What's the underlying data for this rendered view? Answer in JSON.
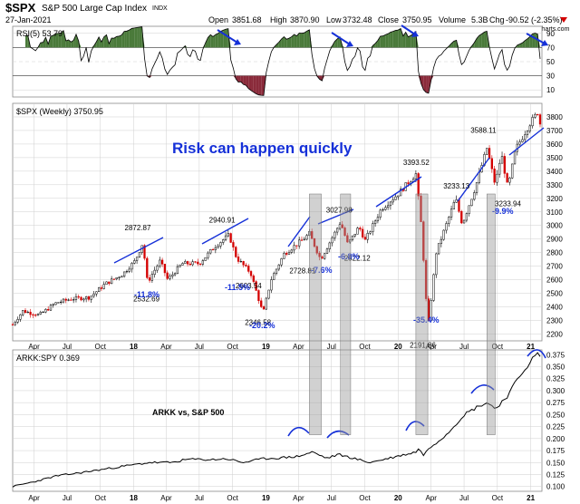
{
  "header": {
    "symbol": "$SPX",
    "name": "S&P 500 Large Cap Index",
    "exchange": "INDX",
    "date": "27-Jan-2021",
    "open_label": "Open",
    "open": "3851.68",
    "high_label": "High",
    "high": "3870.90",
    "low_label": "Low",
    "low": "3732.48",
    "close_label": "Close",
    "close": "3750.95",
    "volume_label": "Volume",
    "volume": "5.3B",
    "chg_label": "Chg",
    "chg": "-90.52 (-2.35%)",
    "credit": "© StockCharts.com"
  },
  "chart_data": [
    {
      "type": "line",
      "panel": "rsi",
      "title": "RSI(5) 53.79",
      "ylim": [
        0,
        100
      ],
      "y_ticks": [
        10,
        30,
        50,
        70,
        90
      ],
      "overbought": 70,
      "oversold": 30,
      "last_value": 53.79,
      "fill_colors": {
        "above": "#4a7a3a",
        "below": "#8a2a3a"
      }
    },
    {
      "type": "candlestick",
      "panel": "price",
      "title": "$SPX (Weekly) 3750.95",
      "annotation": "Risk can happen quickly",
      "ylim": [
        2150,
        3900
      ],
      "y_ticks": [
        2200,
        2300,
        2400,
        2500,
        2600,
        2700,
        2800,
        2900,
        3000,
        3100,
        3200,
        3300,
        3400,
        3500,
        3600,
        3700,
        3800
      ],
      "x_ticks": [
        "Apr",
        "Jul",
        "Oct",
        "18",
        "Apr",
        "Jul",
        "Oct",
        "19",
        "Apr",
        "Jul",
        "Oct",
        "20",
        "Apr",
        "Jul",
        "Oct",
        "21"
      ],
      "x_range": [
        "2017-02-01",
        "2021-02-01"
      ],
      "close_path": [
        [
          "2017-02-01",
          2270
        ],
        [
          "2017-03-01",
          2370
        ],
        [
          "2017-04-15",
          2340
        ],
        [
          "2017-06-01",
          2430
        ],
        [
          "2017-07-15",
          2460
        ],
        [
          "2017-09-01",
          2470
        ],
        [
          "2017-10-15",
          2570
        ],
        [
          "2017-12-01",
          2640
        ],
        [
          "2018-01-05",
          2740
        ],
        [
          "2018-01-26",
          2872
        ],
        [
          "2018-02-08",
          2580
        ],
        [
          "2018-03-15",
          2740
        ],
        [
          "2018-04-05",
          2600
        ],
        [
          "2018-05-15",
          2720
        ],
        [
          "2018-07-01",
          2720
        ],
        [
          "2018-08-15",
          2850
        ],
        [
          "2018-09-21",
          2930
        ],
        [
          "2018-10-12",
          2760
        ],
        [
          "2018-11-20",
          2650
        ],
        [
          "2018-12-24",
          2350
        ],
        [
          "2019-01-15",
          2600
        ],
        [
          "2019-02-20",
          2790
        ],
        [
          "2019-04-15",
          2900
        ],
        [
          "2019-05-01",
          2940
        ],
        [
          "2019-06-01",
          2750
        ],
        [
          "2019-07-26",
          3025
        ],
        [
          "2019-08-15",
          2860
        ],
        [
          "2019-09-15",
          2990
        ],
        [
          "2019-10-02",
          2890
        ],
        [
          "2019-11-15",
          3120
        ],
        [
          "2019-12-31",
          3230
        ],
        [
          "2020-02-19",
          3380
        ],
        [
          "2020-03-06",
          2970
        ],
        [
          "2020-03-23",
          2237
        ],
        [
          "2020-04-15",
          2800
        ],
        [
          "2020-06-08",
          3200
        ],
        [
          "2020-06-26",
          3010
        ],
        [
          "2020-08-01",
          3280
        ],
        [
          "2020-09-02",
          3570
        ],
        [
          "2020-09-25",
          3300
        ],
        [
          "2020-10-12",
          3530
        ],
        [
          "2020-10-30",
          3270
        ],
        [
          "2020-11-20",
          3560
        ],
        [
          "2020-12-31",
          3756
        ],
        [
          "2021-01-22",
          3841
        ],
        [
          "2021-01-27",
          3751
        ]
      ],
      "price_labels": [
        {
          "date": "2018-01-26",
          "value": 2872.87,
          "label": "2872.87"
        },
        {
          "date": "2018-02-09",
          "value": 2532.69,
          "label": "2532.69"
        },
        {
          "date": "2018-09-21",
          "value": 2940.91,
          "label": "2940.91"
        },
        {
          "date": "2018-10-29",
          "value": 2603.54,
          "label": "2603.54"
        },
        {
          "date": "2018-12-24",
          "value": 2346.58,
          "label": "2346.58"
        },
        {
          "date": "2019-05-31",
          "value": 2728.81,
          "label": "2728.81"
        },
        {
          "date": "2019-07-26",
          "value": 3027.98,
          "label": "3027.98"
        },
        {
          "date": "2019-08-05",
          "value": 2822.12,
          "label": "2822.12"
        },
        {
          "date": "2020-02-19",
          "value": 3393.52,
          "label": "3393.52"
        },
        {
          "date": "2020-03-23",
          "value": 2191.86,
          "label": "2191.86"
        },
        {
          "date": "2020-09-02",
          "value": 3588.11,
          "label": "3588.11"
        },
        {
          "date": "2020-09-02",
          "value": 3233.13,
          "label": "3233.13"
        },
        {
          "date": "2020-09-24",
          "value": 3233.94,
          "label": "3233.94"
        }
      ],
      "drawdowns": [
        "-11.8%",
        "-11.5%",
        "-20.2%",
        "-7.6%",
        "-6.8%",
        "-35.4%",
        "-9.9%"
      ],
      "shaded_periods": [
        [
          "2019-05-01",
          "2019-06-03"
        ],
        [
          "2019-07-26",
          "2019-08-23"
        ],
        [
          "2020-02-19",
          "2020-03-23"
        ],
        [
          "2020-09-02",
          "2020-09-25"
        ]
      ]
    },
    {
      "type": "line",
      "panel": "ratio",
      "title": "ARKK:SPY 0.369",
      "annotation": "ARKK vs, S&P 500",
      "ylim": [
        0.09,
        0.385
      ],
      "y_ticks": [
        0.1,
        0.125,
        0.15,
        0.175,
        0.2,
        0.225,
        0.25,
        0.275,
        0.3,
        0.325,
        0.35,
        0.375
      ],
      "y_tick_labels": [
        "0.100",
        "0.125",
        "0.150",
        "0.175",
        "0.200",
        "0.225",
        "0.250",
        "0.275",
        "0.300",
        "0.325",
        "0.350",
        "0.375"
      ],
      "x_ticks": [
        "Apr",
        "Jul",
        "Oct",
        "18",
        "Apr",
        "Jul",
        "Oct",
        "19",
        "Apr",
        "Jul",
        "Oct",
        "20",
        "Apr",
        "Jul",
        "Oct",
        "21"
      ],
      "values": [
        [
          "2017-02-01",
          0.1
        ],
        [
          "2017-04-01",
          0.11
        ],
        [
          "2017-06-01",
          0.122
        ],
        [
          "2017-08-01",
          0.128
        ],
        [
          "2017-10-01",
          0.135
        ],
        [
          "2017-12-01",
          0.142
        ],
        [
          "2018-02-15",
          0.15
        ],
        [
          "2018-04-15",
          0.15
        ],
        [
          "2018-06-01",
          0.157
        ],
        [
          "2018-08-01",
          0.156
        ],
        [
          "2018-09-15",
          0.158
        ],
        [
          "2018-10-30",
          0.15
        ],
        [
          "2018-12-24",
          0.158
        ],
        [
          "2019-02-15",
          0.16
        ],
        [
          "2019-04-01",
          0.163
        ],
        [
          "2019-05-10",
          0.172
        ],
        [
          "2019-06-05",
          0.163
        ],
        [
          "2019-06-20",
          0.159
        ],
        [
          "2019-07-20",
          0.167
        ],
        [
          "2019-08-25",
          0.16
        ],
        [
          "2019-10-15",
          0.15
        ],
        [
          "2019-12-01",
          0.158
        ],
        [
          "2020-02-19",
          0.172
        ],
        [
          "2020-02-25",
          0.18
        ],
        [
          "2020-03-10",
          0.166
        ],
        [
          "2020-04-01",
          0.183
        ],
        [
          "2020-05-15",
          0.21
        ],
        [
          "2020-07-01",
          0.25
        ],
        [
          "2020-08-15",
          0.27
        ],
        [
          "2020-09-05",
          0.275
        ],
        [
          "2020-09-25",
          0.262
        ],
        [
          "2020-10-30",
          0.29
        ],
        [
          "2020-12-01",
          0.33
        ],
        [
          "2021-01-08",
          0.368
        ],
        [
          "2021-01-22",
          0.378
        ],
        [
          "2021-01-27",
          0.369
        ]
      ],
      "highlight_periods": [
        "2019-05",
        "2019-07",
        "2020-02",
        "2020-09",
        "2021-01"
      ]
    }
  ],
  "colors": {
    "candle_up": "#000000",
    "candle_down": "#d40000",
    "trend": "#1530d8",
    "annotation": "#1530d8",
    "drawdown": "#1530d8",
    "shade": "#9a9a9a",
    "grid": "#cfcfcf"
  }
}
